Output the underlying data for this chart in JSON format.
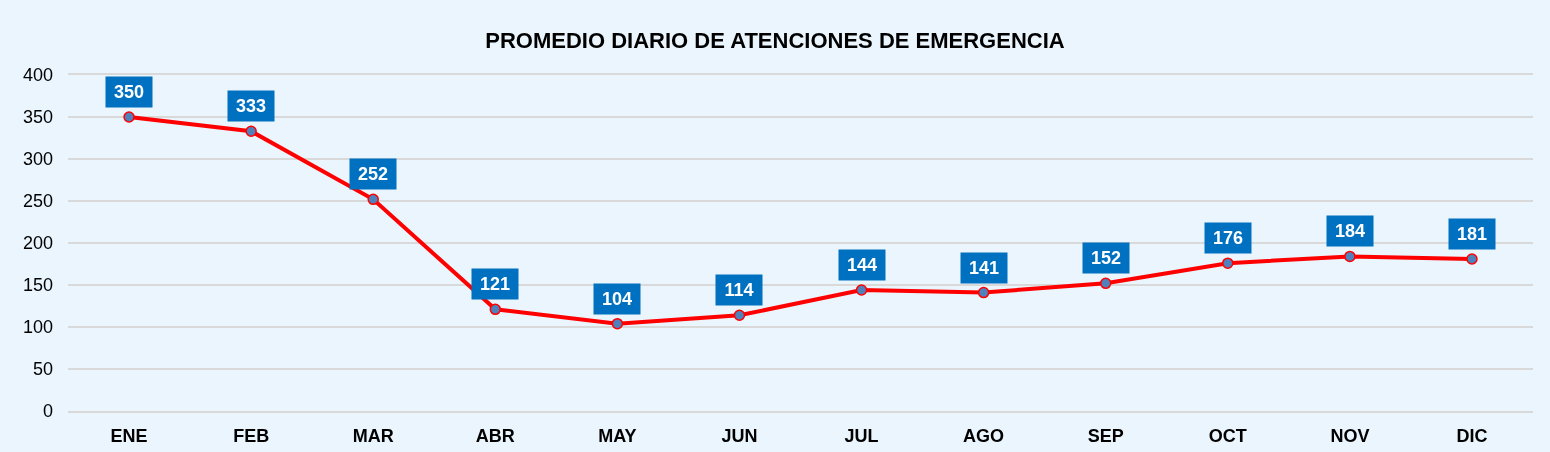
{
  "chart_data": {
    "type": "line",
    "title": "PROMEDIO DIARIO DE ATENCIONES DE EMERGENCIA",
    "categories": [
      "ENE",
      "FEB",
      "MAR",
      "ABR",
      "MAY",
      "JUN",
      "JUL",
      "AGO",
      "SEP",
      "OCT",
      "NOV",
      "DIC"
    ],
    "series": [
      {
        "color": "#ff0000",
        "values": [
          350,
          333,
          252,
          121,
          104,
          114,
          144,
          141,
          152,
          176,
          184,
          181
        ]
      }
    ],
    "ylim": [
      0,
      400
    ],
    "yticks": [
      0,
      50,
      100,
      150,
      200,
      250,
      300,
      350,
      400
    ],
    "grid": "y",
    "marker": "circle",
    "line_style": "solid",
    "data_labels": true
  }
}
